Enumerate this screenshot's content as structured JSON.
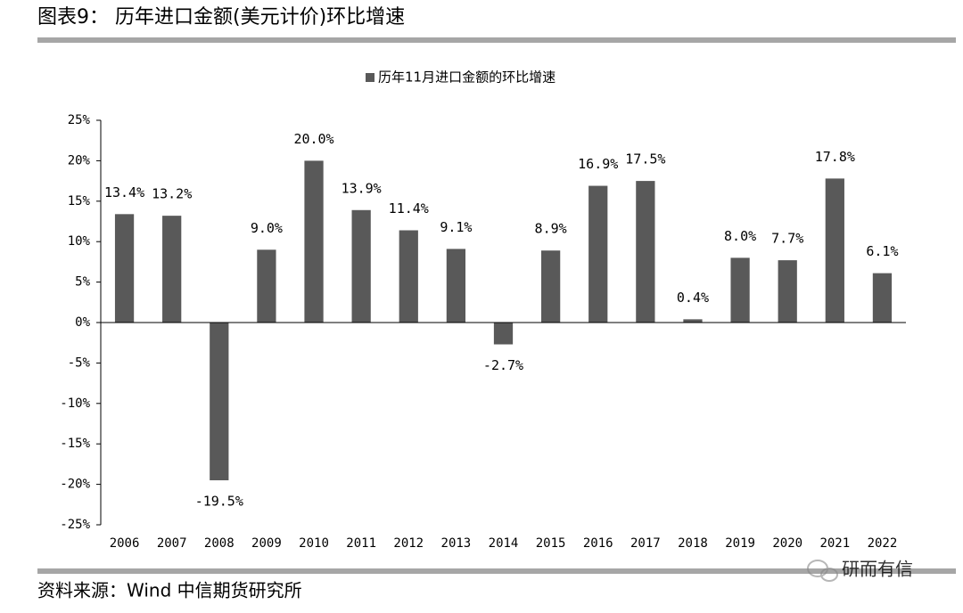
{
  "header": {
    "title": "图表9： 历年进口金额(美元计价)环比增速"
  },
  "chart_data": {
    "type": "bar",
    "categories": [
      "2006",
      "2007",
      "2008",
      "2009",
      "2010",
      "2011",
      "2012",
      "2013",
      "2014",
      "2015",
      "2016",
      "2017",
      "2018",
      "2019",
      "2020",
      "2021",
      "2022"
    ],
    "series": [
      {
        "name": "历年11月进口金额的环比增速",
        "color": "#595959",
        "values": [
          13.4,
          13.2,
          -19.5,
          9.0,
          20.0,
          13.9,
          11.4,
          9.1,
          -2.7,
          8.9,
          16.9,
          17.5,
          0.4,
          8.0,
          7.7,
          17.8,
          6.1
        ],
        "value_labels": [
          "13.4%",
          "13.2%",
          "-19.5%",
          "9.0%",
          "20.0%",
          "13.9%",
          "11.4%",
          "9.1%",
          "-2.7%",
          "8.9%",
          "16.9%",
          "17.5%",
          "0.4%",
          "8.0%",
          "7.7%",
          "17.8%",
          "6.1%"
        ]
      }
    ],
    "ylim": [
      -25,
      25
    ],
    "yticks": [
      {
        "value": 25,
        "label": "25%"
      },
      {
        "value": 20,
        "label": "20%"
      },
      {
        "value": 15,
        "label": "15%"
      },
      {
        "value": 10,
        "label": "10%"
      },
      {
        "value": 5,
        "label": "5%"
      },
      {
        "value": 0,
        "label": "0%"
      },
      {
        "value": -5,
        "label": "-5%"
      },
      {
        "value": -10,
        "label": "-10%"
      },
      {
        "value": -15,
        "label": "-15%"
      },
      {
        "value": -20,
        "label": "-20%"
      },
      {
        "value": -25,
        "label": "-25%"
      }
    ],
    "legend": "top"
  },
  "footer": {
    "source": "资料来源：Wind 中信期货研究所",
    "watermark": "研而有信"
  }
}
